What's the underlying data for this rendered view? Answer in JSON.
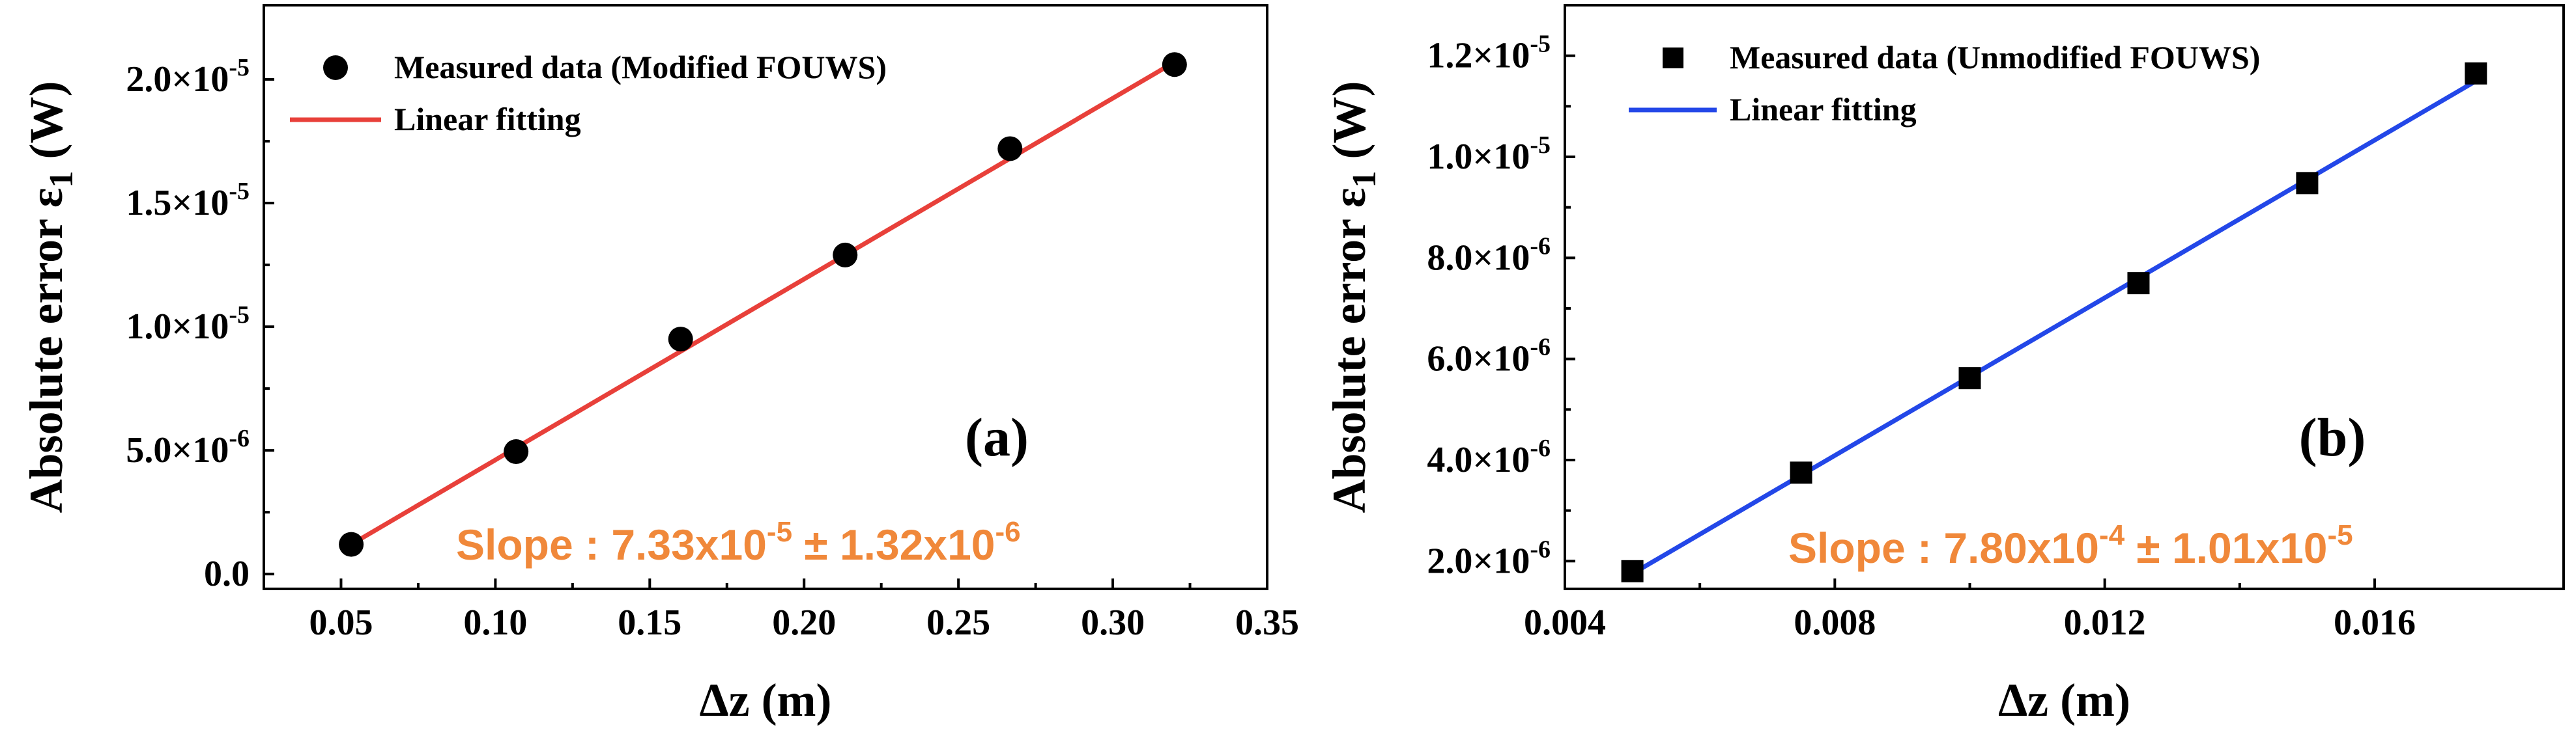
{
  "chart_data": [
    {
      "type": "scatter",
      "panel_label": "(a)",
      "xlabel_main": "Δz",
      "xlabel_unit": "(m)",
      "ylabel_main": "Absolute error  ε",
      "ylabel_sub": "1",
      "ylabel_unit": "(W)",
      "xlim": [
        0.025,
        0.35
      ],
      "ylim": [
        -6e-07,
        2.3e-05
      ],
      "x_ticks": [
        0.05,
        0.1,
        0.15,
        0.2,
        0.25,
        0.3,
        0.35
      ],
      "x_tick_labels": [
        "0.05",
        "0.10",
        "0.15",
        "0.20",
        "0.25",
        "0.30",
        "0.35"
      ],
      "y_ticks": [
        {
          "value": 0,
          "mantissa": "0.0",
          "exp": ""
        },
        {
          "value": 5e-06,
          "mantissa": "5.0×10",
          "exp": "-6"
        },
        {
          "value": 1e-05,
          "mantissa": "1.0×10",
          "exp": "-5"
        },
        {
          "value": 1.5e-05,
          "mantissa": "1.5×10",
          "exp": "-5"
        },
        {
          "value": 2e-05,
          "mantissa": "2.0×10",
          "exp": "-5"
        }
      ],
      "series": [
        {
          "name": "Measured data (Modified FOUWS)",
          "kind": "points",
          "marker": "circle",
          "color": "#000000",
          "x": [
            0.0533,
            0.1067,
            0.16,
            0.2133,
            0.2667,
            0.32
          ],
          "y": [
            1.2e-06,
            4.95e-06,
            9.5e-06,
            1.29e-05,
            1.72e-05,
            2.06e-05
          ]
        },
        {
          "name": "Linear fitting",
          "kind": "line",
          "color": "#e8403a",
          "x": [
            0.0533,
            0.32
          ],
          "y": [
            1.2e-06,
            2.07e-05
          ]
        }
      ],
      "slope": {
        "prefix": "Slope : 7.33x10",
        "exp1": "-5",
        "middle": " ± 1.32x10",
        "exp2": "-6",
        "color": "#f0883a"
      }
    },
    {
      "type": "scatter",
      "panel_label": "(b)",
      "xlabel_main": "Δz",
      "xlabel_unit": "(m)",
      "ylabel_main": "Absolute error  ε",
      "ylabel_sub": "1",
      "ylabel_unit": "(W)",
      "xlim": [
        0.004,
        0.0188
      ],
      "ylim": [
        1.45e-06,
        1.3e-05
      ],
      "x_ticks": [
        0.004,
        0.008,
        0.012,
        0.016
      ],
      "x_tick_labels": [
        "0.004",
        "0.008",
        "0.012",
        "0.016"
      ],
      "y_ticks": [
        {
          "value": 2e-06,
          "mantissa": "2.0×10",
          "exp": "-6"
        },
        {
          "value": 4e-06,
          "mantissa": "4.0×10",
          "exp": "-6"
        },
        {
          "value": 6e-06,
          "mantissa": "6.0×10",
          "exp": "-6"
        },
        {
          "value": 8e-06,
          "mantissa": "8.0×10",
          "exp": "-6"
        },
        {
          "value": 1e-05,
          "mantissa": "1.0×10",
          "exp": "-5"
        },
        {
          "value": 1.2e-05,
          "mantissa": "1.2×10",
          "exp": "-5"
        }
      ],
      "series": [
        {
          "name": "Measured data (Unmodified FOUWS)",
          "kind": "points",
          "marker": "square",
          "color": "#000000",
          "x": [
            0.005,
            0.0075,
            0.01,
            0.0125,
            0.015,
            0.0175
          ],
          "y": [
            1.8e-06,
            3.75e-06,
            5.62e-06,
            7.5e-06,
            9.48e-06,
            1.165e-05
          ]
        },
        {
          "name": "Linear fitting",
          "kind": "line",
          "color": "#2347e8",
          "x": [
            0.005,
            0.0175
          ],
          "y": [
            1.75e-06,
            1.15e-05
          ]
        }
      ],
      "slope": {
        "prefix": "Slope : 7.80x10",
        "exp1": "-4",
        "middle": " ± 1.01x10",
        "exp2": "-5",
        "color": "#f0883a"
      }
    }
  ]
}
